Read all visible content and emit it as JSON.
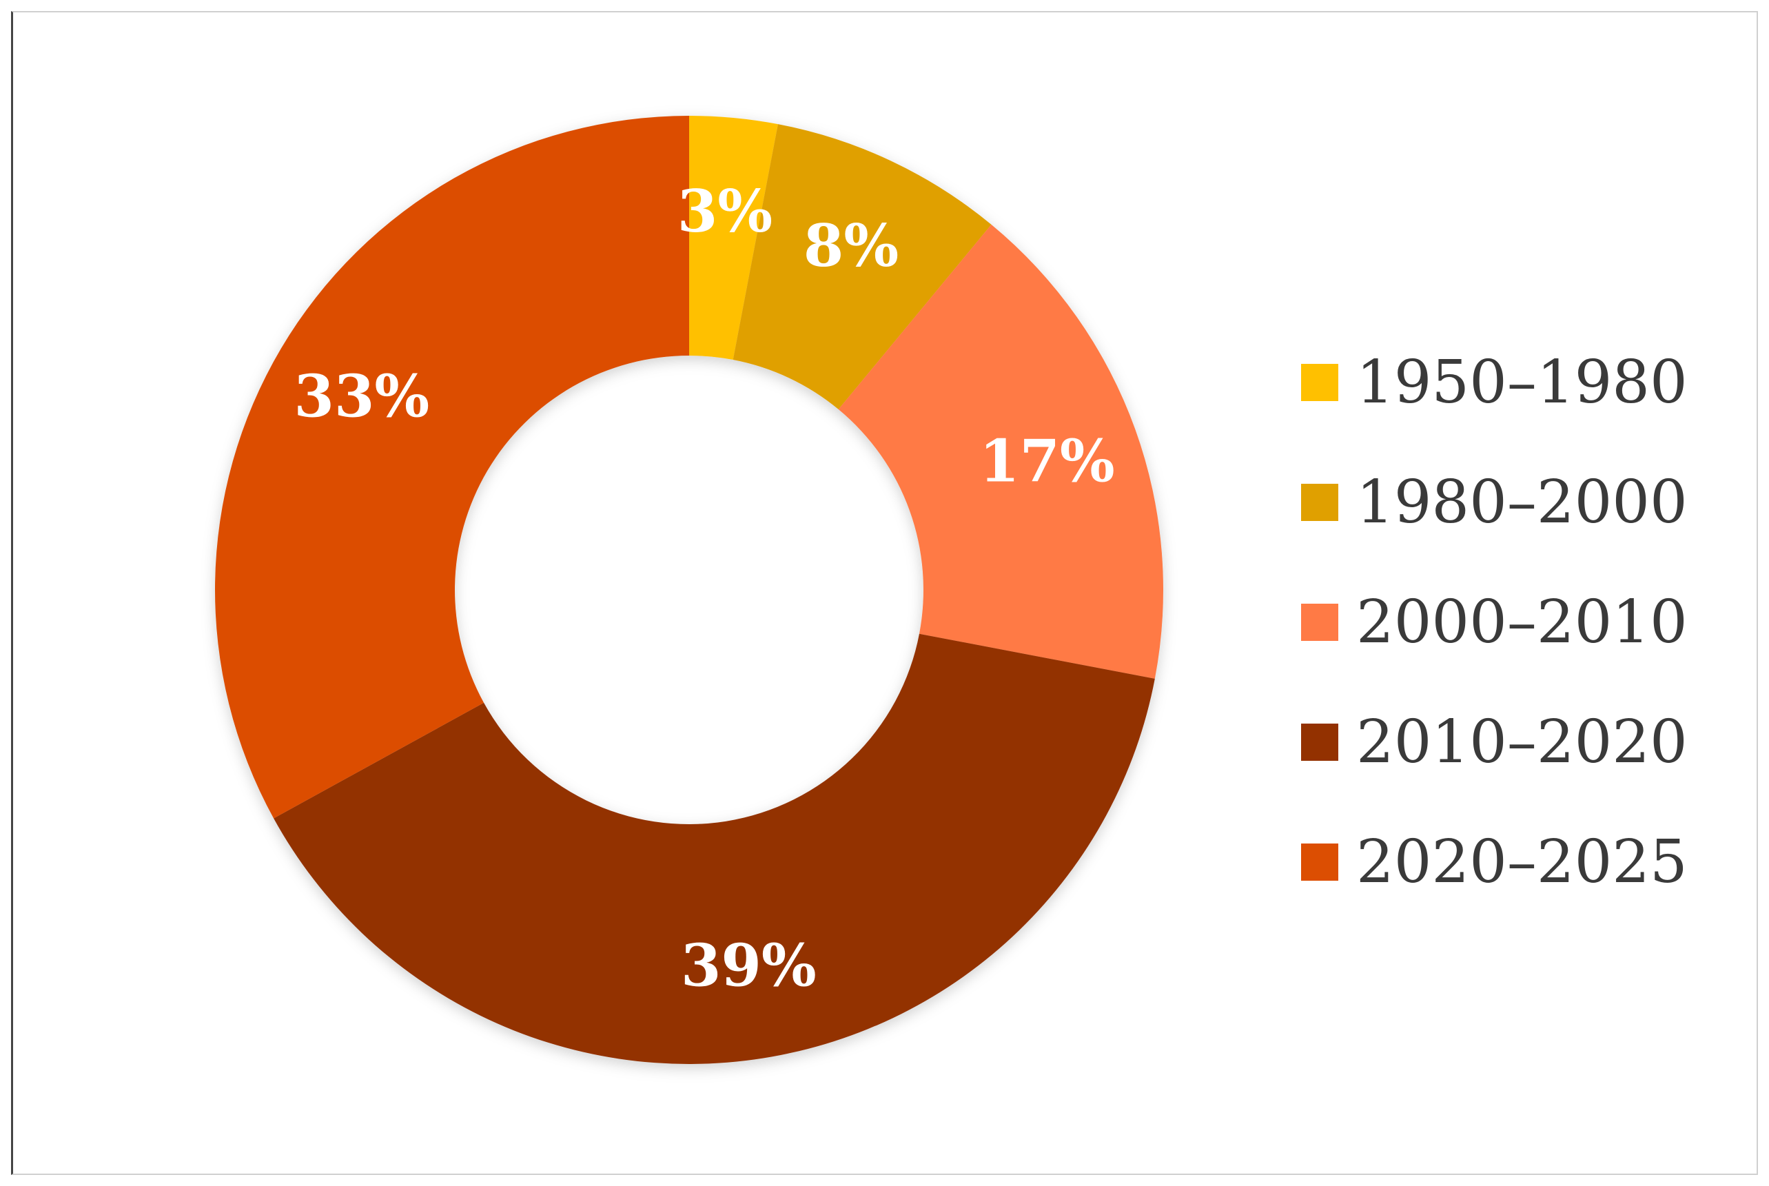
{
  "chart_data": {
    "type": "pie",
    "title": "",
    "categories": [
      "1950–1980",
      "1980–2000",
      "2000–2010",
      "2010–2020",
      "2020–2025"
    ],
    "values": [
      3,
      8,
      17,
      39,
      33
    ],
    "value_labels": [
      "3%",
      "8%",
      "17%",
      "39%",
      "33%"
    ],
    "unit": "%",
    "colors": [
      "#FFC000",
      "#E0A000",
      "#FF7A45",
      "#933100",
      "#DC4E02"
    ],
    "donut": true,
    "legend": {
      "placement": "right",
      "entries": [
        "1950–1980",
        "1980–2000",
        "2000–2010",
        "2010–2020",
        "2020–2025"
      ]
    }
  }
}
